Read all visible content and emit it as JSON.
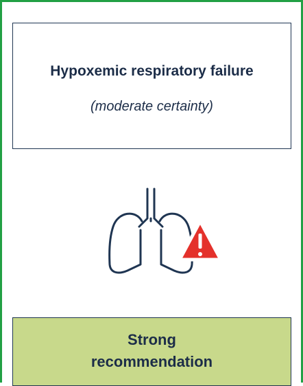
{
  "header": {
    "title": "Hypoxemic respiratory failure",
    "subtitle": "(moderate certainty)"
  },
  "recommendation": {
    "lines": [
      "Strong",
      "recommendation"
    ]
  }
}
